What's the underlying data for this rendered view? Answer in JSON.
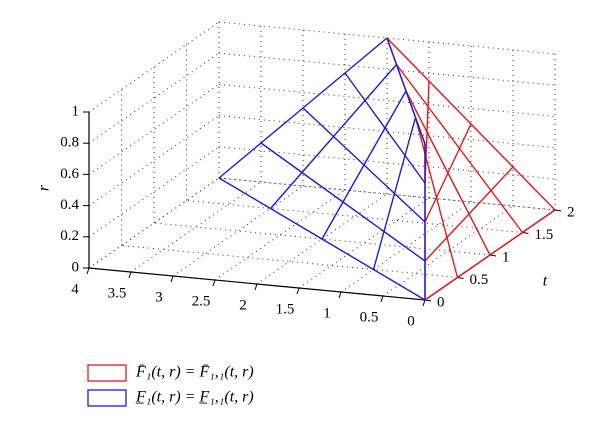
{
  "chart_data": {
    "type": "surface3d",
    "ylabel": "r",
    "zlabel": "t",
    "xlim": [
      0,
      4
    ],
    "xticks": [
      0,
      0.5,
      1,
      1.5,
      2,
      2.5,
      3,
      3.5,
      4
    ],
    "zlim": [
      0,
      2
    ],
    "zticks": [
      0,
      0.5,
      1,
      1.5,
      2
    ],
    "ylim": [
      0,
      1
    ],
    "yticks": [
      0,
      0.2,
      0.4,
      0.6,
      0.8,
      1
    ],
    "grid": true,
    "t": [
      0,
      0.5,
      1,
      1.5,
      2
    ],
    "r": [
      0,
      0.25,
      0.5,
      0.75,
      1
    ],
    "series": [
      {
        "name": "F̄₁(t, r) = F̄₁,₁(t, r)",
        "color": "#e0191d",
        "values": [
          [
            0,
            0,
            0,
            0,
            0
          ],
          [
            0,
            0.125,
            0.25,
            0.375,
            0.5
          ],
          [
            0,
            0.25,
            0.5,
            0.75,
            1
          ],
          [
            0,
            0.375,
            0.75,
            1.125,
            1.5
          ],
          [
            0,
            0.5,
            1,
            1.5,
            2
          ]
        ]
      },
      {
        "name": "F̲₁(t, r) = F̲₁,₁(t, r)",
        "color": "#1d1dd6",
        "values": [
          [
            0,
            0,
            0,
            0,
            0
          ],
          [
            1,
            0.875,
            0.75,
            0.625,
            0.5
          ],
          [
            2,
            1.75,
            1.5,
            1.25,
            1
          ],
          [
            3,
            2.625,
            2.25,
            1.875,
            1.5
          ],
          [
            4,
            3.5,
            3,
            2.5,
            2
          ]
        ]
      }
    ],
    "legend": "bottom-left"
  }
}
